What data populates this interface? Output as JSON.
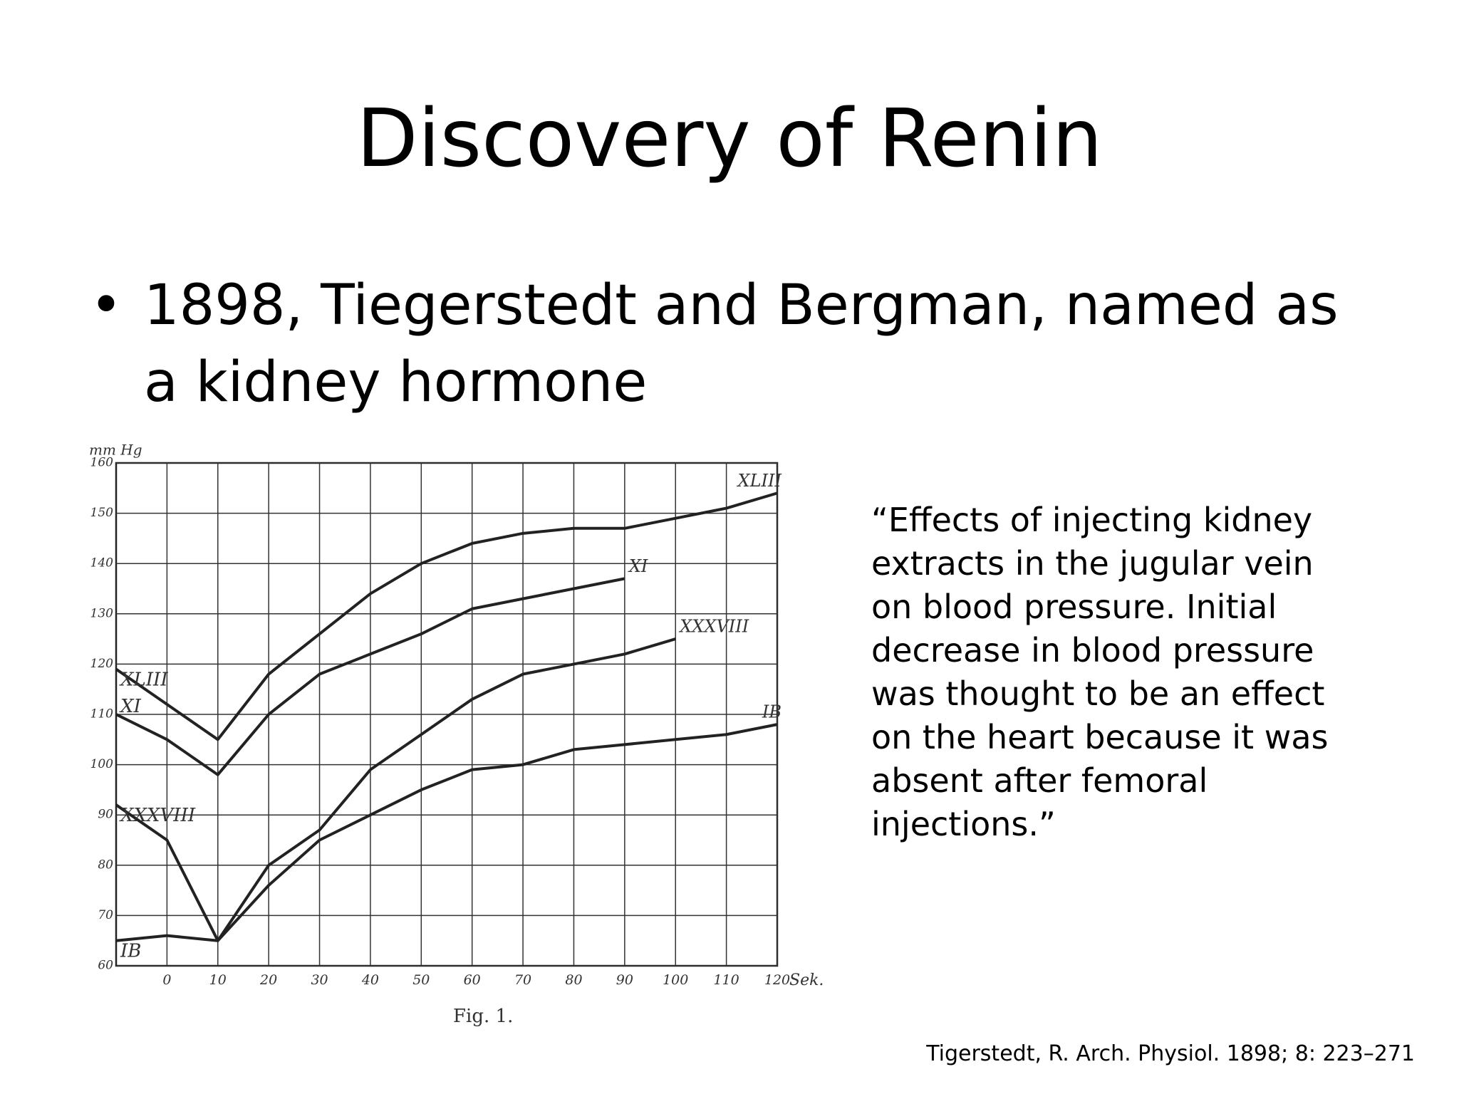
{
  "header": {
    "title": "Discovery of Renin"
  },
  "bullets": [
    "1898, Tiegerstedt and Bergman, named as a kidney hormone"
  ],
  "quote": "“Effects of injecting kidney extracts in the jugular vein on blood pressure. Initial decrease in blood pressure was thought to be an effect on the heart because it was absent after femoral injections.”",
  "citation": "Tigerstedt, R.  Arch. Physiol. 1898; 8: 223–271",
  "chart_data": {
    "type": "line",
    "caption": "Fig. 1.",
    "y_label": "mm Hg",
    "x_label": "Sek.",
    "x": [
      -10,
      0,
      10,
      20,
      30,
      40,
      50,
      60,
      70,
      80,
      90,
      100,
      110,
      120
    ],
    "xlim": [
      -10,
      120
    ],
    "xticks": [
      0,
      10,
      20,
      30,
      40,
      50,
      60,
      70,
      80,
      90,
      100,
      110,
      120
    ],
    "ylim": [
      60,
      160
    ],
    "yticks": [
      60,
      70,
      80,
      90,
      100,
      110,
      120,
      130,
      140,
      150,
      160
    ],
    "grid": true,
    "series": [
      {
        "name": "XLIII",
        "color": "#222222",
        "values": [
          119,
          112,
          105,
          118,
          126,
          134,
          140,
          144,
          146,
          147,
          147,
          149,
          151,
          154
        ]
      },
      {
        "name": "XI",
        "color": "#222222",
        "values": [
          110,
          105,
          98,
          110,
          118,
          122,
          126,
          131,
          133,
          135,
          137,
          null,
          null,
          null
        ]
      },
      {
        "name": "XXXVIII",
        "color": "#222222",
        "values": [
          92,
          85,
          65,
          80,
          87,
          99,
          106,
          113,
          118,
          120,
          122,
          125,
          null,
          null
        ]
      },
      {
        "name": "IB",
        "color": "#222222",
        "values": [
          65,
          66,
          65,
          76,
          85,
          90,
          95,
          99,
          100,
          103,
          104,
          105,
          106,
          108
        ]
      }
    ]
  }
}
